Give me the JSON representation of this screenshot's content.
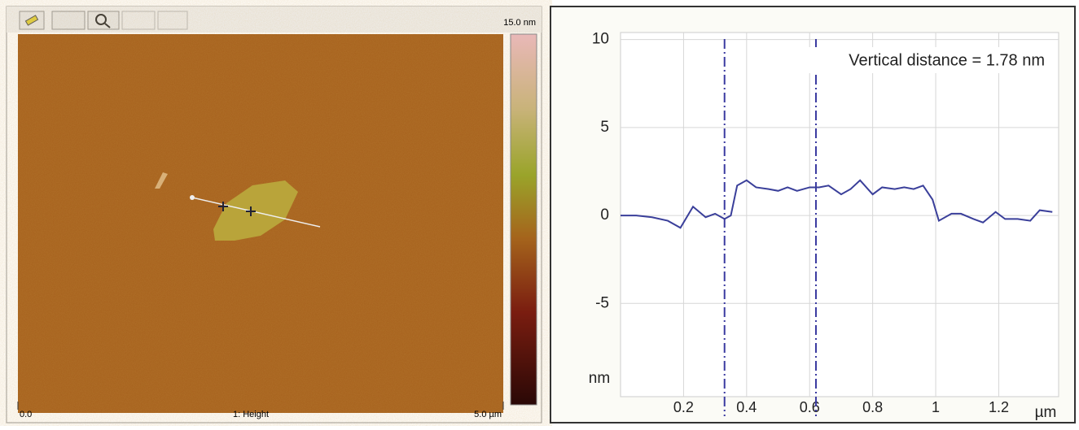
{
  "afm_image": {
    "scale_max": "15.0 nm",
    "x_start": "0.0",
    "channel": "1: Height",
    "x_end": "5.0 µm"
  },
  "chart_data": {
    "type": "line",
    "annotation": "Vertical distance = 1.78 nm",
    "xlabel": "µm",
    "ylabel": "nm",
    "xlim": [
      0,
      1.39
    ],
    "xticks": [
      0.2,
      0.4,
      0.6,
      0.8,
      1,
      1.2
    ],
    "ylim": [
      -10.3,
      10.4
    ],
    "yticks": [
      10,
      5,
      0,
      -5
    ],
    "grid": true,
    "cursors": [
      0.33,
      0.62
    ],
    "cursor_color": "#3a3aa0",
    "series": [
      {
        "color": "#3a3f9a",
        "x": [
          0,
          0.05,
          0.1,
          0.15,
          0.19,
          0.23,
          0.27,
          0.3,
          0.33,
          0.35,
          0.37,
          0.4,
          0.43,
          0.47,
          0.5,
          0.53,
          0.56,
          0.6,
          0.63,
          0.66,
          0.7,
          0.73,
          0.76,
          0.8,
          0.83,
          0.87,
          0.9,
          0.93,
          0.96,
          0.99,
          1.01,
          1.05,
          1.08,
          1.12,
          1.15,
          1.19,
          1.22,
          1.26,
          1.3,
          1.33,
          1.37
        ],
        "values": [
          0,
          0,
          -0.1,
          -0.3,
          -0.7,
          0.5,
          -0.1,
          0.1,
          -0.2,
          0,
          1.7,
          2.0,
          1.6,
          1.5,
          1.4,
          1.6,
          1.4,
          1.6,
          1.6,
          1.7,
          1.2,
          1.5,
          2.0,
          1.2,
          1.6,
          1.5,
          1.6,
          1.5,
          1.7,
          0.9,
          -0.3,
          0.1,
          0.1,
          -0.2,
          -0.4,
          0.2,
          -0.2,
          -0.2,
          -0.3,
          0.3,
          0.2
        ]
      }
    ]
  }
}
